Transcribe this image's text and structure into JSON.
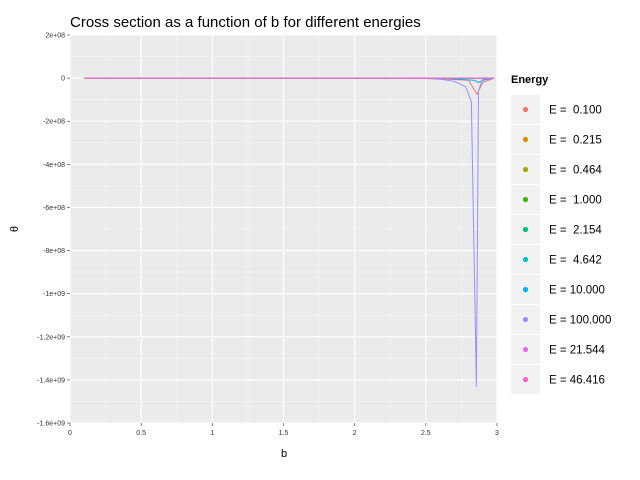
{
  "chart_data": {
    "type": "line",
    "title": "Cross section as a function of b for different energies",
    "xlabel": "b",
    "ylabel": "θ",
    "xlim": [
      0,
      3
    ],
    "ylim": [
      -1600000000,
      200000000
    ],
    "x_ticks": [
      {
        "value": 0,
        "label": "0"
      },
      {
        "value": 0.5,
        "label": "0.5"
      },
      {
        "value": 1,
        "label": "1"
      },
      {
        "value": 1.5,
        "label": "1.5"
      },
      {
        "value": 2,
        "label": "2"
      },
      {
        "value": 2.5,
        "label": "2.5"
      },
      {
        "value": 3,
        "label": "3"
      }
    ],
    "y_ticks": [
      {
        "value": 200000000,
        "label": "2e+08"
      },
      {
        "value": 0,
        "label": "0"
      },
      {
        "value": -200000000,
        "label": "-2e+08"
      },
      {
        "value": -400000000,
        "label": "-4e+08"
      },
      {
        "value": -600000000,
        "label": "-6e+08"
      },
      {
        "value": -800000000,
        "label": "-8e+08"
      },
      {
        "value": -1000000000,
        "label": "-1e+09"
      },
      {
        "value": -1200000000,
        "label": "-1.2e+09"
      },
      {
        "value": -1400000000,
        "label": "-1.4e+09"
      },
      {
        "value": -1600000000,
        "label": "-1.6e+09"
      }
    ],
    "grid": true,
    "legend": {
      "title": "Energy",
      "position": "right"
    },
    "series": [
      {
        "name": "E =  0.100",
        "color": "#F8766D",
        "x": [
          0.1,
          2.5,
          2.8,
          2.86,
          2.9,
          2.98
        ],
        "y": [
          0,
          0,
          -10000000,
          -75000000,
          -20000000,
          0
        ]
      },
      {
        "name": "E =  0.215",
        "color": "#D89000",
        "x": [
          0.1,
          2.98
        ],
        "y": [
          0,
          0
        ]
      },
      {
        "name": "E =  0.464",
        "color": "#A3A500",
        "x": [
          0.1,
          2.98
        ],
        "y": [
          0,
          0
        ]
      },
      {
        "name": "E =  1.000",
        "color": "#39B600",
        "x": [
          0.1,
          2.98
        ],
        "y": [
          0,
          0
        ]
      },
      {
        "name": "E =  2.154",
        "color": "#00BF7D",
        "x": [
          0.1,
          2.98
        ],
        "y": [
          0,
          0
        ]
      },
      {
        "name": "E =  4.642",
        "color": "#00BFC4",
        "x": [
          0.1,
          2.98
        ],
        "y": [
          0,
          0
        ]
      },
      {
        "name": "E = 10.000",
        "color": "#00B0F6",
        "x": [
          0.1,
          2.6,
          2.84,
          2.87,
          2.9,
          2.98
        ],
        "y": [
          0,
          0,
          -10000000,
          -20000000,
          -10000000,
          0
        ]
      },
      {
        "name": "E = 100.000",
        "color": "#9590FF",
        "x": [
          0.1,
          2.3,
          2.5,
          2.6,
          2.7,
          2.78,
          2.82,
          2.855,
          2.87,
          2.885,
          2.9,
          2.98
        ],
        "y": [
          0,
          0,
          -2000000,
          -5000000,
          -15000000,
          -40000000,
          -110000000,
          -1430000000,
          -60000000,
          -30000000,
          -5000000,
          0
        ]
      },
      {
        "name": "E = 21.544",
        "color": "#E76BF3",
        "x": [
          0.1,
          2.98
        ],
        "y": [
          0,
          0
        ]
      },
      {
        "name": "E = 46.416",
        "color": "#FF62BC",
        "x": [
          0.1,
          2.98
        ],
        "y": [
          0,
          0
        ]
      }
    ]
  }
}
